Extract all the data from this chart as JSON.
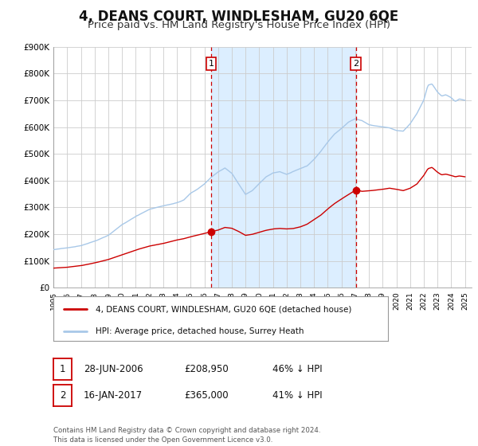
{
  "title": "4, DEANS COURT, WINDLESHAM, GU20 6QE",
  "subtitle": "Price paid vs. HM Land Registry's House Price Index (HPI)",
  "title_fontsize": 12,
  "subtitle_fontsize": 9.5,
  "background_color": "#ffffff",
  "plot_bg_color": "#ffffff",
  "grid_color": "#cccccc",
  "hpi_color": "#a8c8e8",
  "property_color": "#cc0000",
  "shaded_color": "#dceeff",
  "vline_color": "#cc0000",
  "sale1_date_num": 2006.49,
  "sale1_price": 208950,
  "sale1_label": "1",
  "sale2_date_num": 2017.05,
  "sale2_price": 365000,
  "sale2_label": "2",
  "ylim": [
    0,
    900000
  ],
  "xlim_start": 1995.0,
  "xlim_end": 2025.5,
  "ytick_vals": [
    0,
    100000,
    200000,
    300000,
    400000,
    500000,
    600000,
    700000,
    800000,
    900000
  ],
  "ytick_labels": [
    "£0",
    "£100K",
    "£200K",
    "£300K",
    "£400K",
    "£500K",
    "£600K",
    "£700K",
    "£800K",
    "£900K"
  ],
  "xtick_years": [
    1995,
    1996,
    1997,
    1998,
    1999,
    2000,
    2001,
    2002,
    2003,
    2004,
    2005,
    2006,
    2007,
    2008,
    2009,
    2010,
    2011,
    2012,
    2013,
    2014,
    2015,
    2016,
    2017,
    2018,
    2019,
    2020,
    2021,
    2022,
    2023,
    2024,
    2025
  ],
  "legend_property_label": "4, DEANS COURT, WINDLESHAM, GU20 6QE (detached house)",
  "legend_hpi_label": "HPI: Average price, detached house, Surrey Heath",
  "annotation1_text": "1",
  "annotation2_text": "2",
  "table_row1": [
    "1",
    "28-JUN-2006",
    "£208,950",
    "46% ↓ HPI"
  ],
  "table_row2": [
    "2",
    "16-JAN-2017",
    "£365,000",
    "41% ↓ HPI"
  ],
  "footer": "Contains HM Land Registry data © Crown copyright and database right 2024.\nThis data is licensed under the Open Government Licence v3.0."
}
